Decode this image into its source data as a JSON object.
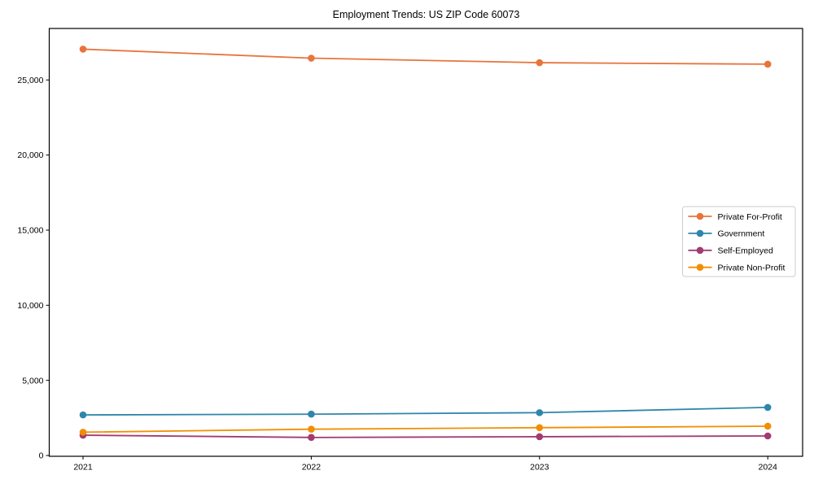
{
  "chart_data": {
    "type": "line",
    "title": "Employment Trends: US ZIP Code 60073",
    "xlabel": "",
    "ylabel": "",
    "x": [
      "2021",
      "2022",
      "2023",
      "2024"
    ],
    "ylim": [
      -100,
      28400
    ],
    "grid": false,
    "legend_position": "center-right",
    "axis_color": "#000000",
    "legend_border_color": "#cccccc",
    "yticks": [
      {
        "value": 0,
        "label": "0"
      },
      {
        "value": 5000,
        "label": "5,000"
      },
      {
        "value": 10000,
        "label": "10,000"
      },
      {
        "value": 15000,
        "label": "15,000"
      },
      {
        "value": 20000,
        "label": "20,000"
      },
      {
        "value": 25000,
        "label": "25,000"
      }
    ],
    "series": [
      {
        "id": "private-for-profit",
        "name": "Private For-Profit",
        "color": "#E8743B",
        "values": [
          27050,
          26450,
          26150,
          26050
        ]
      },
      {
        "id": "government",
        "name": "Government",
        "color": "#2E86AB",
        "values": [
          2700,
          2750,
          2850,
          3200
        ]
      },
      {
        "id": "self-employed",
        "name": "Self-Employed",
        "color": "#A23B72",
        "values": [
          1350,
          1200,
          1250,
          1300
        ]
      },
      {
        "id": "private-non-profit",
        "name": "Private Non-Profit",
        "color": "#F18F01",
        "values": [
          1550,
          1750,
          1850,
          1950
        ]
      }
    ]
  }
}
